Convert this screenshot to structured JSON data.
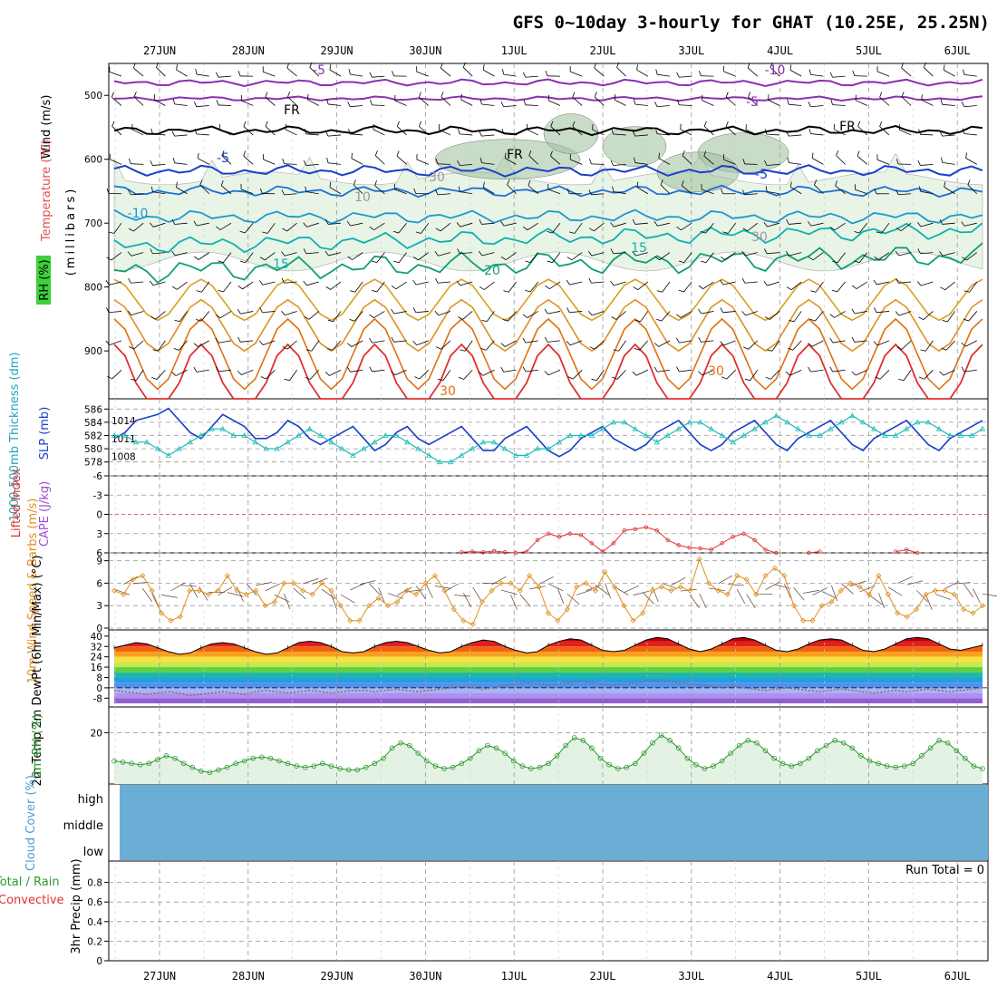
{
  "title": "GFS 0~10day 3-hourly for GHAT (10.25E, 25.25N)",
  "dates": [
    "27JUN",
    "28JUN",
    "29JUN",
    "30JUN",
    "1JUL",
    "2JUL",
    "3JUL",
    "4JUL",
    "5JUL",
    "6JUL"
  ],
  "run_total": "Run Total = 0",
  "chart_data": [
    {
      "type": "contour",
      "panel": "upper-air",
      "ylabels": {
        "rh": "RH (%)",
        "temperature": "Temperature (°C)",
        "wind": "Wind (m/s)",
        "pressure": "(millibars)"
      },
      "yticks": [
        500,
        600,
        700,
        800,
        900
      ],
      "ylim": [
        450,
        975
      ],
      "contour_labels": [
        "-5",
        "-10",
        "-5",
        "FR",
        "FR",
        "FR",
        "-5",
        "-5",
        "-10",
        "15",
        "20",
        "15",
        "30",
        "30",
        "10",
        "30",
        "30"
      ],
      "freezing_level_mb": [
        560,
        545,
        540,
        545,
        548,
        545,
        550,
        565,
        560,
        555,
        560,
        560
      ]
    },
    {
      "type": "line",
      "panel": "slp-thickness",
      "ylabel_left": "1000-500mb Thickness (dm)",
      "ylabel_right": "SLP (mb)",
      "yticks_left": [
        578,
        580,
        582,
        584,
        586
      ],
      "yticks_right": [
        1008,
        1011,
        1014
      ],
      "series": [
        {
          "name": "SLP (mb)",
          "color": "#1a3fc8",
          "values": [
            1011,
            1012,
            1014,
            1014.5,
            1015,
            1016,
            1014,
            1012,
            1011,
            1013,
            1015,
            1014,
            1013,
            1011,
            1011,
            1012,
            1014,
            1013,
            1011,
            1010,
            1011,
            1012,
            1013,
            1011,
            1009,
            1010,
            1012,
            1013,
            1011,
            1010,
            1011,
            1012,
            1013,
            1011,
            1009,
            1009,
            1011,
            1012,
            1013,
            1011,
            1009,
            1008,
            1009,
            1011,
            1012,
            1013,
            1011,
            1010,
            1009,
            1010,
            1012,
            1013,
            1014,
            1012,
            1010,
            1009,
            1010,
            1012,
            1013,
            1014,
            1012,
            1010,
            1009,
            1011,
            1012,
            1013,
            1014,
            1012,
            1010,
            1009,
            1011,
            1012,
            1013,
            1014,
            1012,
            1010,
            1009,
            1011,
            1012,
            1013,
            1014
          ]
        },
        {
          "name": "1000-500mb Thickness (dm)",
          "color": "#20b8b8",
          "values": [
            582,
            582,
            581,
            581,
            580,
            579,
            580,
            581,
            582,
            583,
            583,
            582,
            582,
            581,
            580,
            580,
            581,
            582,
            583,
            582,
            581,
            580,
            579,
            580,
            581,
            582,
            582,
            581,
            580,
            579,
            578,
            578,
            579,
            580,
            581,
            581,
            580,
            579,
            579,
            580,
            580,
            581,
            582,
            582,
            582,
            583,
            584,
            584,
            583,
            582,
            581,
            582,
            583,
            584,
            584,
            583,
            582,
            581,
            582,
            583,
            584,
            585,
            584,
            583,
            582,
            582,
            583,
            584,
            585,
            584,
            583,
            582,
            582,
            583,
            584,
            584,
            583,
            582,
            582,
            582,
            583
          ]
        }
      ]
    },
    {
      "type": "line",
      "panel": "stability",
      "ylabel_left": "Lifted Index",
      "ylabel_right": "CAPE (J/kg)",
      "yticks": [
        "-6",
        "-3",
        "0",
        "3",
        "6"
      ],
      "ylim": [
        -6,
        6
      ],
      "series": [
        {
          "name": "Lifted Index",
          "color": "#e03030",
          "values": [
            null,
            null,
            null,
            null,
            null,
            null,
            null,
            null,
            null,
            null,
            null,
            null,
            null,
            null,
            null,
            null,
            null,
            null,
            null,
            null,
            null,
            null,
            null,
            null,
            null,
            null,
            null,
            null,
            null,
            null,
            null,
            null,
            5.9,
            5.8,
            5.9,
            5.7,
            5.9,
            6,
            5.8,
            4,
            3,
            3.5,
            3,
            3.2,
            4.5,
            5.8,
            4.5,
            2.5,
            2.3,
            2,
            2.5,
            4,
            4.8,
            5.2,
            5.3,
            5.5,
            4.5,
            3.5,
            3,
            4,
            5.5,
            6,
            null,
            null,
            6,
            5.8,
            null,
            null,
            null,
            null,
            null,
            null,
            5.8,
            5.5,
            6,
            null,
            null,
            null,
            null,
            null,
            null
          ]
        }
      ]
    },
    {
      "type": "line",
      "panel": "wind10m",
      "ylabel": "10m Wind Speed & Barbs (m/s)",
      "yticks": [
        0,
        3,
        6,
        9
      ],
      "ylim": [
        0,
        9.5
      ],
      "series": [
        {
          "name": "10m Wind Speed",
          "color": "#e09020",
          "values": [
            5,
            4.5,
            6.5,
            7,
            5,
            2,
            1,
            1.5,
            5,
            5,
            4.5,
            5,
            7,
            5,
            4.5,
            5,
            3,
            3.5,
            6,
            6,
            5,
            4.5,
            6,
            5,
            3,
            1,
            1,
            3,
            4,
            3,
            3.5,
            5,
            4.5,
            6,
            7,
            5,
            2.5,
            1,
            0.5,
            3.5,
            5,
            6,
            6,
            5,
            7,
            5.5,
            2,
            1,
            2.5,
            5.5,
            6,
            5,
            7.5,
            5.5,
            3,
            1,
            2,
            5,
            5.5,
            5,
            5.5,
            5,
            9.2,
            6,
            5,
            4.5,
            7,
            6.5,
            4.5,
            7,
            8,
            7,
            3,
            1,
            1,
            3,
            3.5,
            5,
            6,
            5.5,
            4.5,
            7,
            4.5,
            2,
            1.5,
            2.5,
            4.5,
            5,
            5,
            4.5,
            2.5,
            2,
            3
          ]
        }
      ]
    },
    {
      "type": "area",
      "panel": "temperature2m",
      "ylabel": "2m Temp 2m DewPt (6hr Min/Max) (°C)",
      "yticks": [
        -8,
        0,
        8,
        16,
        24,
        32,
        40
      ],
      "ylim": [
        -12,
        42
      ],
      "series": [
        {
          "name": "2m Temp",
          "color": "#000000",
          "values": [
            31,
            33,
            35,
            34,
            31,
            28,
            26,
            27,
            31,
            34,
            35,
            34,
            31,
            28,
            26,
            27,
            31,
            35,
            36,
            35,
            32,
            28,
            27,
            28,
            32,
            35,
            36,
            35,
            32,
            29,
            27,
            28,
            32,
            35,
            37,
            36,
            32,
            29,
            27,
            28,
            33,
            36,
            38,
            37,
            33,
            29,
            28,
            29,
            33,
            37,
            39,
            38,
            34,
            30,
            28,
            30,
            34,
            38,
            39,
            37,
            33,
            29,
            28,
            30,
            34,
            37,
            38,
            37,
            33,
            29,
            28,
            30,
            34,
            38,
            39,
            38,
            34,
            30,
            29,
            31,
            33
          ]
        },
        {
          "name": "2m DewPt",
          "color": "#d07070",
          "values": [
            -2,
            -3,
            -4,
            -5,
            -4,
            -3,
            -4,
            -6,
            -5,
            -4,
            -3,
            -4,
            -5,
            -3,
            -2,
            -3,
            -4,
            -3,
            -2,
            -3,
            -4,
            -3,
            -2,
            -2,
            -3,
            -2,
            -1,
            -2,
            -3,
            -2,
            -1,
            0,
            1,
            0,
            -1,
            0,
            2,
            3,
            4,
            3,
            2,
            3,
            4,
            5,
            4,
            3,
            2,
            3,
            4,
            5,
            6,
            5,
            4,
            3,
            2,
            1,
            0,
            1,
            0,
            -1,
            -2,
            -1,
            0,
            -1,
            -2,
            -3,
            -2,
            -1,
            -2,
            -3,
            -4,
            -3,
            -2,
            -3,
            -2,
            -1,
            -2,
            -3,
            -2,
            -1,
            0
          ]
        }
      ]
    },
    {
      "type": "line",
      "panel": "rh2m",
      "ylabel": "2m RH (%)",
      "yticks": [
        20
      ],
      "ylim": [
        0,
        30
      ],
      "series": [
        {
          "name": "2m RH",
          "color": "#2a9a2a",
          "values": [
            9,
            8.5,
            8,
            7.5,
            8,
            9.5,
            11,
            10,
            8,
            6.5,
            5,
            4.5,
            5.5,
            6.5,
            8,
            9,
            10,
            10.5,
            10,
            9,
            8,
            7,
            6.5,
            7,
            8,
            7,
            6,
            5.5,
            5.5,
            6.5,
            8,
            10,
            14,
            16,
            15,
            12,
            9,
            7,
            6,
            6.5,
            8,
            10,
            13,
            15,
            14,
            12,
            9,
            7,
            6,
            6.5,
            8,
            11,
            15,
            18,
            17,
            14,
            10,
            7.5,
            6,
            6.5,
            8,
            12,
            16,
            19,
            17,
            14,
            10,
            7.5,
            6,
            7,
            9,
            12,
            15,
            17,
            16,
            13,
            10,
            8,
            7,
            8,
            10,
            13,
            15,
            17,
            16,
            14,
            11,
            9,
            8,
            7,
            6.5,
            7,
            8,
            11,
            14,
            17,
            16,
            13,
            10,
            7,
            6
          ]
        }
      ]
    },
    {
      "type": "table",
      "panel": "cloud-cover",
      "ylabel": "Cloud Cover (%)",
      "levels": [
        "high",
        "middle",
        "low"
      ]
    },
    {
      "type": "bar",
      "panel": "precipitation",
      "ylabel": "3hr Precip (mm)",
      "ylabel_left": "Total / Rain",
      "ylabel_left2": "Convective",
      "yticks": [
        "0",
        "0.2",
        "0.4",
        "0.6",
        "0.8"
      ],
      "ylim": [
        0,
        1
      ],
      "values": []
    }
  ],
  "colors": {
    "slp": "#1a3fc8",
    "thickness": "#20b8b8",
    "lifted": "#e03030",
    "cape": "#9a4fcf",
    "wind10m": "#e09020",
    "rh": "#2a9a2a",
    "cloud": "#6aaed6"
  }
}
